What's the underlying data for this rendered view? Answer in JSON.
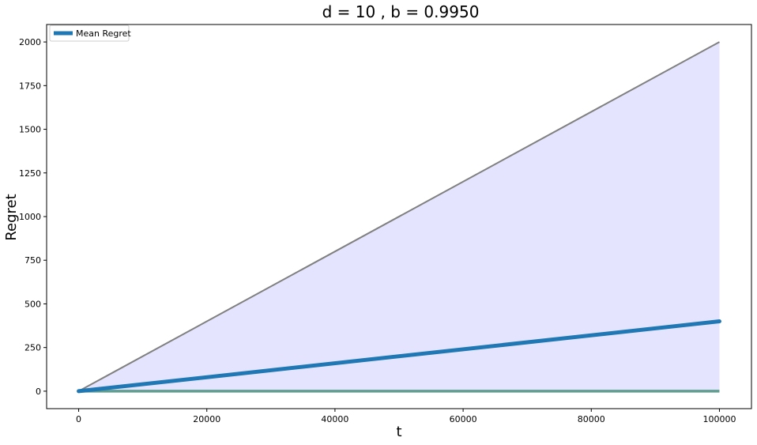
{
  "chart_data": {
    "type": "line",
    "title": "d = 10 , b = 0.9950",
    "xlabel": "t",
    "ylabel": "Regret",
    "xlim": [
      -5000,
      105000
    ],
    "ylim": [
      -100,
      2100
    ],
    "x_ticks": [
      0,
      20000,
      40000,
      60000,
      80000,
      100000
    ],
    "y_ticks": [
      0,
      250,
      500,
      750,
      1000,
      1250,
      1500,
      1750,
      2000
    ],
    "grid": false,
    "legend_position": "top-left",
    "series": [
      {
        "name": "Mean Regret",
        "x": [
          0,
          100000
        ],
        "y": [
          0,
          400
        ],
        "color": "#1f77b4",
        "role": "mean"
      }
    ],
    "band": {
      "x": [
        0,
        100000
      ],
      "upper": [
        0,
        2000
      ],
      "lower": [
        0,
        0
      ],
      "fill_color": "#e4e4ff",
      "upper_line_color": "#808080",
      "lower_line_color": "#5f9e8f"
    }
  }
}
